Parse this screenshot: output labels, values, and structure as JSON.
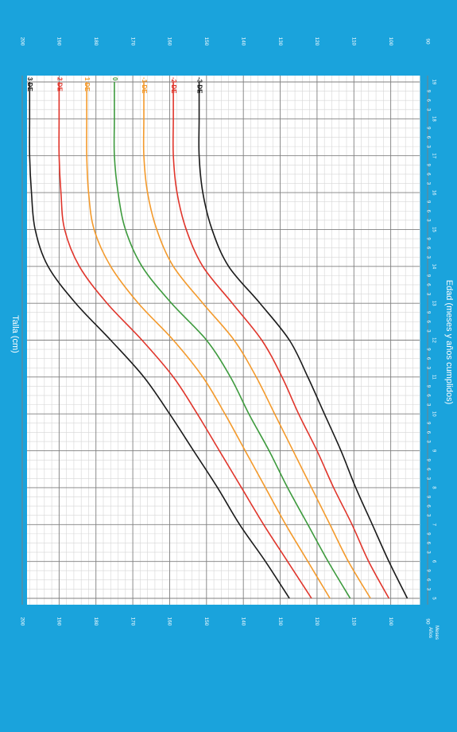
{
  "chart_data": {
    "type": "line",
    "title": "",
    "xlabel": "Edad (meses y años cumplidos)",
    "ylabel": "Talla (cm)",
    "corner_label_top": "Meses",
    "corner_label_bottom": "Años",
    "xlim": [
      5,
      19
    ],
    "ylim": [
      90,
      200
    ],
    "year_ticks": [
      "5",
      "6",
      "7",
      "8",
      "9",
      "10",
      "11",
      "12",
      "13",
      "14",
      "15",
      "16",
      "17",
      "18",
      "19"
    ],
    "month_ticks": [
      "3",
      "6",
      "9"
    ],
    "y_ticks": [
      90,
      100,
      110,
      120,
      130,
      140,
      150,
      160,
      170,
      180,
      190,
      200
    ],
    "grid": true,
    "orientation": "rotated-90-clockwise",
    "legend": "inline-labels-at-line-ends",
    "colors": {
      "background": "#1aa3dc",
      "plot": "#ffffff",
      "grid_major": "#7f7f7f",
      "grid_minor": "#d6d6d6",
      "sd_3": "#1a1a1a",
      "sd_2": "#e0352b",
      "sd_1": "#f39a2c",
      "sd_0": "#3d9a3d"
    },
    "x": [
      5,
      6,
      7,
      8,
      9,
      10,
      11,
      12,
      13,
      14,
      15,
      16,
      17,
      18,
      19
    ],
    "series": [
      {
        "name": "3 DE",
        "color_key": "sd_3",
        "values": [
          127.5,
          134,
          141,
          147,
          153.5,
          160,
          167,
          176,
          185.5,
          193,
          196.5,
          197.5,
          198,
          198,
          198
        ]
      },
      {
        "name": "2 DE",
        "color_key": "sd_2",
        "values": [
          121.5,
          128,
          134.5,
          140.5,
          146.5,
          152.5,
          159,
          167.5,
          177,
          184.5,
          188.5,
          189.5,
          190,
          190,
          190
        ]
      },
      {
        "name": "1 DE",
        "color_key": "sd_1",
        "values": [
          116.5,
          122.5,
          128.5,
          134,
          139.5,
          145,
          151,
          159,
          168.5,
          176,
          180.5,
          182,
          182.5,
          182.5,
          182.5
        ]
      },
      {
        "name": "0",
        "color_key": "sd_0",
        "values": [
          111,
          117,
          122.5,
          128,
          133,
          138.5,
          143.5,
          150,
          159.5,
          167.5,
          172,
          174,
          175,
          175,
          175
        ]
      },
      {
        "name": "-1 DE",
        "color_key": "sd_1",
        "values": [
          105.5,
          111.5,
          116.5,
          121.5,
          126.5,
          131.5,
          136.5,
          142.5,
          151,
          159,
          163.5,
          166,
          167,
          167,
          167
        ]
      },
      {
        "name": "-2 DE",
        "color_key": "sd_2",
        "values": [
          100.5,
          106,
          110.5,
          115.5,
          120,
          125,
          129.5,
          135,
          143,
          151,
          155.5,
          158,
          159,
          159,
          159
        ]
      },
      {
        "name": "-3 DE",
        "color_key": "sd_3",
        "values": [
          95.5,
          100.5,
          105,
          109.5,
          113.5,
          118,
          122.5,
          127.5,
          135.5,
          144,
          148.5,
          151,
          152,
          152,
          152
        ]
      }
    ]
  }
}
